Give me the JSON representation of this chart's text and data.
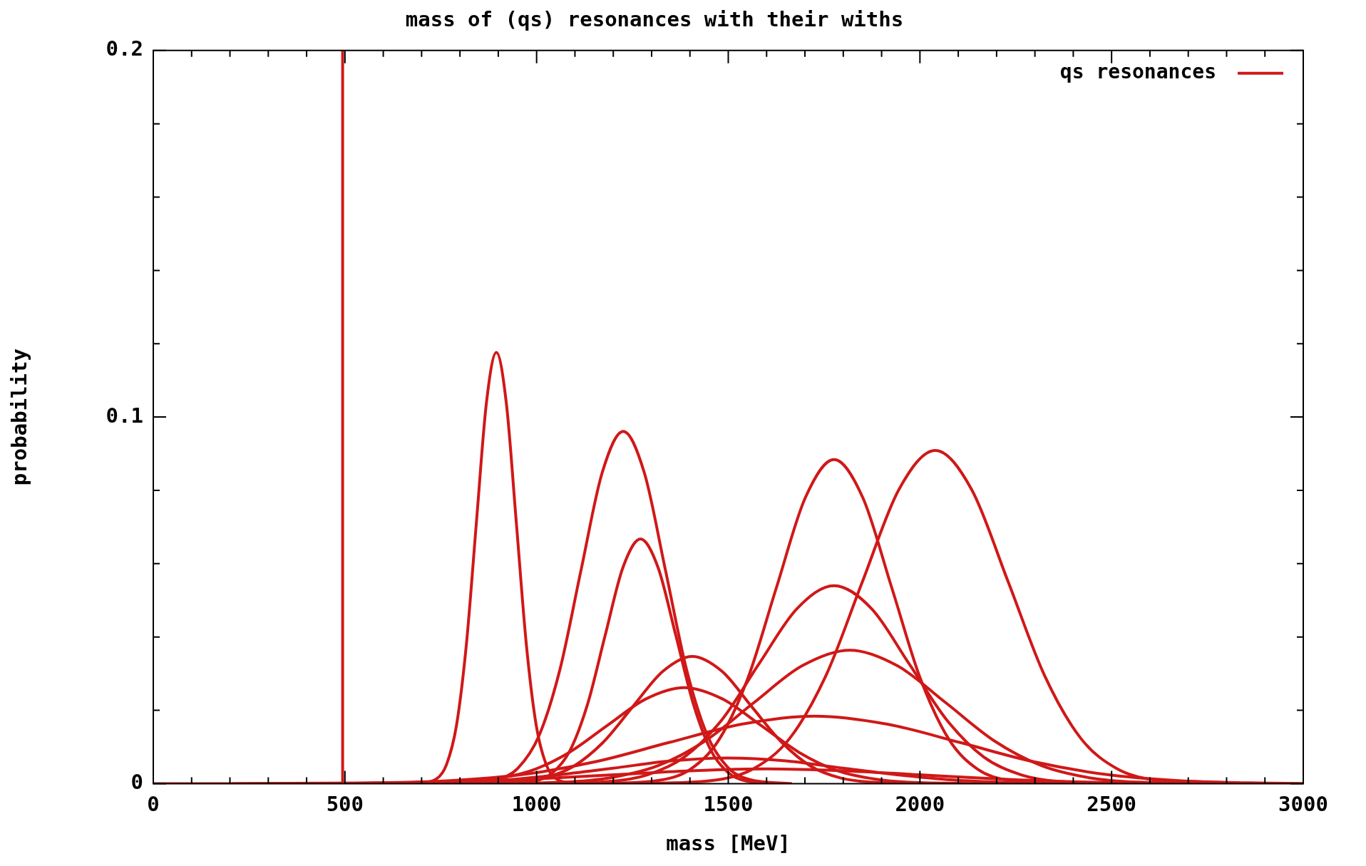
{
  "chart_data": {
    "type": "line",
    "title": "mass of (qs) resonances with their withs",
    "xlabel": "mass [MeV]",
    "ylabel": "probability",
    "xlim": [
      0,
      3000
    ],
    "xticks": [
      0,
      {
        "value": 100,
        "label": null
      },
      {
        "value": 200,
        "label": null
      },
      {
        "value": 300,
        "label": null
      },
      {
        "value": 400,
        "label": null
      },
      500,
      {
        "value": 600,
        "label": null
      },
      {
        "value": 700,
        "label": null
      },
      {
        "value": 800,
        "label": null
      },
      {
        "value": 900,
        "label": null
      },
      1000,
      {
        "value": 1100,
        "label": null
      },
      {
        "value": 1200,
        "label": null
      },
      {
        "value": 1300,
        "label": null
      },
      {
        "value": 1400,
        "label": null
      },
      1500,
      {
        "value": 1600,
        "label": null
      },
      {
        "value": 1700,
        "label": null
      },
      {
        "value": 1800,
        "label": null
      },
      {
        "value": 1900,
        "label": null
      },
      2000,
      {
        "value": 2100,
        "label": null
      },
      {
        "value": 2200,
        "label": null
      },
      {
        "value": 2300,
        "label": null
      },
      {
        "value": 2400,
        "label": null
      },
      2500,
      {
        "value": 2600,
        "label": null
      },
      {
        "value": 2700,
        "label": null
      },
      {
        "value": 2800,
        "label": null
      },
      {
        "value": 2900,
        "label": null
      },
      3000
    ],
    "ylim": [
      0,
      0.2
    ],
    "yticks": [
      0,
      {
        "value": 0.02,
        "label": null
      },
      {
        "value": 0.04,
        "label": null
      },
      {
        "value": 0.06,
        "label": null
      },
      {
        "value": 0.08,
        "label": null
      },
      0.1,
      {
        "value": 0.12,
        "label": null
      },
      {
        "value": 0.14,
        "label": null
      },
      {
        "value": 0.16,
        "label": null
      },
      {
        "value": 0.18,
        "label": null
      },
      0.2
    ],
    "legend": "top right",
    "series": [
      {
        "name": "qs resonances",
        "color": "#d01818",
        "x": [
          494,
          494
        ],
        "values": [
          0,
          0.2
        ]
      },
      {
        "color": "#d01818",
        "x": [
          687,
          739,
          765,
          791,
          817,
          843,
          869,
          895,
          921,
          947,
          973,
          999,
          1025,
          1051,
          1103
        ],
        "values": [
          0,
          0.0013,
          0.0052,
          0.0159,
          0.0382,
          0.0713,
          0.1038,
          0.1176,
          0.1038,
          0.0713,
          0.0382,
          0.0159,
          0.0052,
          0.0013,
          0
        ]
      },
      {
        "color": "#d01818",
        "x": [
          786,
          896,
          951,
          1006,
          1061,
          1116,
          1171,
          1226,
          1281,
          1336,
          1391,
          1446,
          1501,
          1556,
          1666
        ],
        "values": [
          0,
          0.0011,
          0.0042,
          0.013,
          0.0312,
          0.0583,
          0.0848,
          0.0961,
          0.0848,
          0.0583,
          0.0312,
          0.013,
          0.0042,
          0.0011,
          0
        ]
      },
      {
        "color": "#d01818",
        "x": [
          903,
          995,
          1041,
          1087,
          1133,
          1179,
          1225,
          1271,
          1317,
          1363,
          1409,
          1455,
          1501,
          1547,
          1639
        ],
        "values": [
          0,
          0.0007,
          0.0029,
          0.009,
          0.0217,
          0.0405,
          0.0589,
          0.0667,
          0.0589,
          0.0405,
          0.0217,
          0.009,
          0.0029,
          0.0007,
          0
        ]
      },
      {
        "color": "#d01818",
        "x": [
          786,
          941,
          1019,
          1096,
          1174,
          1251,
          1329,
          1406,
          1484,
          1561,
          1639,
          1716,
          1794,
          1871,
          2026
        ],
        "values": [
          0,
          0.0004,
          0.0015,
          0.0047,
          0.0113,
          0.021,
          0.0306,
          0.0347,
          0.0306,
          0.021,
          0.0113,
          0.0047,
          0.0015,
          0.0004,
          0
        ]
      },
      {
        "color": "#d01818",
        "x": [
          585,
          785,
          885,
          985,
          1085,
          1185,
          1285,
          1385,
          1485,
          1585,
          1685,
          1785,
          1885,
          1985,
          2185
        ],
        "values": [
          0,
          0.0003,
          0.0012,
          0.0035,
          0.0085,
          0.0159,
          0.0231,
          0.0262,
          0.0231,
          0.0159,
          0.0085,
          0.0035,
          0.0012,
          0.0003,
          0
        ]
      },
      {
        "color": "#d01818",
        "x": [
          1176,
          1326,
          1401,
          1476,
          1551,
          1626,
          1701,
          1776,
          1851,
          1926,
          2001,
          2076,
          2151,
          2226,
          2376
        ],
        "values": [
          0,
          0.001,
          0.0039,
          0.012,
          0.0287,
          0.0536,
          0.078,
          0.0884,
          0.078,
          0.0536,
          0.0287,
          0.012,
          0.0039,
          0.001,
          0
        ]
      },
      {
        "color": "#d01818",
        "x": [
          1280,
          1470,
          1565,
          1660,
          1755,
          1850,
          1945,
          2040,
          2135,
          2230,
          2325,
          2420,
          2515,
          2610,
          2800
        ],
        "values": [
          0,
          0.001,
          0.004,
          0.0123,
          0.0295,
          0.0551,
          0.0802,
          0.0909,
          0.0802,
          0.0551,
          0.0295,
          0.0123,
          0.004,
          0.001,
          0
        ]
      },
      {
        "color": "#d01818",
        "x": [
          996,
          1191,
          1289,
          1386,
          1484,
          1581,
          1679,
          1776,
          1874,
          1971,
          2069,
          2166,
          2264,
          2361,
          2556
        ],
        "values": [
          0,
          0.0006,
          0.0024,
          0.0073,
          0.0175,
          0.0328,
          0.0477,
          0.054,
          0.0477,
          0.0328,
          0.0175,
          0.0073,
          0.0024,
          0.0006,
          0
        ]
      },
      {
        "color": "#d01818",
        "x": [
          817,
          1067,
          1192,
          1317,
          1442,
          1567,
          1692,
          1817,
          1942,
          2067,
          2192,
          2317,
          2442,
          2567,
          2817
        ],
        "values": [
          0,
          0.0004,
          0.0016,
          0.0049,
          0.0118,
          0.0221,
          0.0321,
          0.0364,
          0.0321,
          0.0221,
          0.0118,
          0.0049,
          0.0016,
          0.0004,
          0
        ]
      },
      {
        "color": "#d01818",
        "x": [
          205,
          585,
          775,
          965,
          1155,
          1345,
          1535,
          1725,
          1915,
          2105,
          2295,
          2485,
          2675,
          2865,
          3000
        ],
        "values": [
          0,
          0.0002,
          0.0008,
          0.0025,
          0.006,
          0.0112,
          0.0162,
          0.0184,
          0.0162,
          0.0112,
          0.006,
          0.0025,
          0.0008,
          0.0002,
          0
        ]
      },
      {
        "color": "#d01818",
        "x": [
          300,
          600,
          750,
          900,
          1050,
          1200,
          1350,
          1500,
          1650,
          1800,
          1950,
          2100,
          2250,
          2400,
          2700
        ],
        "values": [
          0,
          0.0001,
          0.0003,
          0.0009,
          0.0023,
          0.0042,
          0.0062,
          0.007,
          0.0062,
          0.0042,
          0.0023,
          0.0009,
          0.0003,
          0.0001,
          0
        ]
      },
      {
        "color": "#d01818",
        "x": [
          0,
          400,
          600,
          800,
          1000,
          1200,
          1400,
          1600,
          1800,
          2000,
          2200,
          2400,
          2600,
          2800,
          3000
        ],
        "values": [
          0,
          0,
          0.0002,
          0.0005,
          0.0013,
          0.0024,
          0.0035,
          0.004,
          0.0035,
          0.0024,
          0.0013,
          0.0005,
          0.0002,
          0,
          0
        ]
      }
    ]
  }
}
